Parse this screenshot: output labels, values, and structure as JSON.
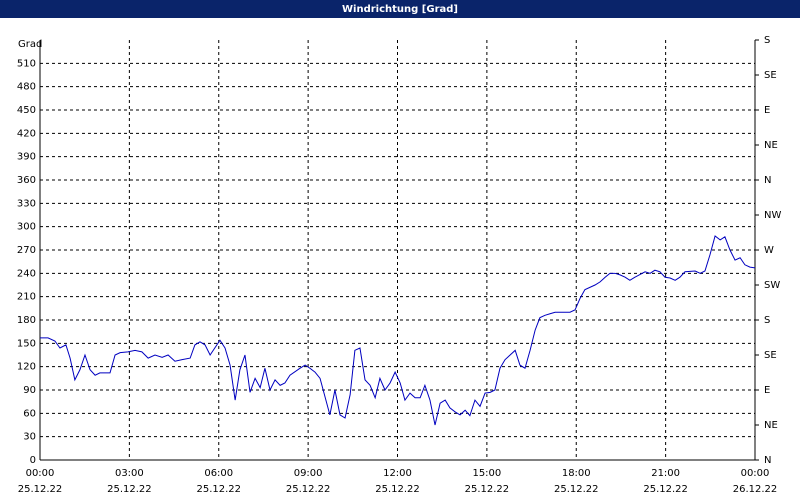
{
  "chart_data": {
    "type": "line",
    "title": "Windrichtung [Grad]",
    "ylabel": "Grad",
    "x": [
      0,
      0.27,
      0.5,
      0.67,
      0.87,
      1.01,
      1.17,
      1.34,
      1.51,
      1.68,
      1.85,
      2.01,
      2.35,
      2.52,
      2.69,
      2.95,
      3.19,
      3.42,
      3.63,
      3.86,
      4.1,
      4.3,
      4.53,
      4.77,
      5.04,
      5.2,
      5.37,
      5.54,
      5.71,
      6.04,
      6.21,
      6.38,
      6.55,
      6.71,
      6.88,
      7.05,
      7.22,
      7.39,
      7.55,
      7.72,
      7.89,
      8.06,
      8.22,
      8.39,
      8.73,
      8.9,
      9.06,
      9.23,
      9.4,
      9.73,
      9.9,
      10.07,
      10.24,
      10.41,
      10.57,
      10.74,
      10.91,
      11.08,
      11.25,
      11.41,
      11.58,
      11.75,
      11.92,
      12.09,
      12.25,
      12.42,
      12.59,
      12.76,
      12.92,
      13.09,
      13.26,
      13.43,
      13.6,
      13.76,
      13.93,
      14.1,
      14.27,
      14.43,
      14.6,
      14.77,
      14.94,
      15.11,
      15.27,
      15.44,
      15.61,
      15.78,
      15.95,
      16.11,
      16.28,
      16.45,
      16.62,
      16.78,
      16.95,
      17.12,
      17.29,
      17.79,
      17.96,
      18.13,
      18.29,
      18.63,
      18.8,
      18.97,
      19.13,
      19.3,
      19.47,
      19.64,
      19.8,
      19.97,
      20.31,
      20.48,
      20.64,
      20.81,
      20.98,
      21.15,
      21.32,
      21.48,
      21.65,
      21.99,
      22.16,
      22.32,
      22.49,
      22.66,
      22.83,
      22.99,
      23.16,
      23.33,
      23.5,
      23.66,
      23.83,
      24
    ],
    "series": [
      {
        "name": "Windrichtung",
        "color": "#0000c0",
        "values": [
          157,
          157,
          153,
          144,
          148,
          131,
          103,
          116,
          135,
          116,
          109,
          112,
          112,
          135,
          138,
          139,
          141,
          139,
          131,
          135,
          132,
          135,
          127,
          129,
          131,
          148,
          152,
          148,
          135,
          154,
          144,
          122,
          77,
          116,
          135,
          87,
          105,
          93,
          118,
          90,
          103,
          96,
          99,
          109,
          118,
          122,
          118,
          113,
          105,
          58,
          90,
          58,
          54,
          84,
          141,
          144,
          103,
          96,
          80,
          105,
          90,
          99,
          113,
          99,
          77,
          86,
          80,
          80,
          96,
          77,
          45,
          73,
          77,
          67,
          62,
          58,
          64,
          57,
          77,
          69,
          86,
          87,
          90,
          118,
          129,
          135,
          141,
          122,
          118,
          141,
          167,
          183,
          186,
          188,
          190,
          190,
          193,
          208,
          219,
          225,
          229,
          235,
          240,
          240,
          238,
          235,
          231,
          235,
          242,
          240,
          244,
          242,
          235,
          234,
          231,
          235,
          242,
          243,
          240,
          243,
          264,
          288,
          283,
          287,
          270,
          257,
          260,
          251,
          248,
          247
        ]
      }
    ],
    "xlim": [
      0,
      24
    ],
    "xticks": [
      {
        "value": 0,
        "label": "00:00"
      },
      {
        "value": 3,
        "label": "03:00"
      },
      {
        "value": 6,
        "label": "06:00"
      },
      {
        "value": 9,
        "label": "09:00"
      },
      {
        "value": 12,
        "label": "12:00"
      },
      {
        "value": 15,
        "label": "15:00"
      },
      {
        "value": 18,
        "label": "18:00"
      },
      {
        "value": 21,
        "label": "21:00"
      },
      {
        "value": 24,
        "label": "00:00"
      }
    ],
    "xtick_dates": [
      "25.12.22",
      "25.12.22",
      "25.12.22",
      "25.12.22",
      "25.12.22",
      "25.12.22",
      "25.12.22",
      "25.12.22",
      "26.12.22"
    ],
    "ylim": [
      0,
      540
    ],
    "yticks": [
      0,
      30,
      60,
      90,
      120,
      150,
      180,
      210,
      240,
      270,
      300,
      330,
      360,
      390,
      420,
      450,
      480,
      510
    ],
    "y2lim": [
      0,
      540
    ],
    "y2ticks": [
      {
        "value": 0,
        "label": "N"
      },
      {
        "value": 45,
        "label": "NE"
      },
      {
        "value": 90,
        "label": "E"
      },
      {
        "value": 135,
        "label": "SE"
      },
      {
        "value": 180,
        "label": "S"
      },
      {
        "value": 225,
        "label": "SW"
      },
      {
        "value": 270,
        "label": "W"
      },
      {
        "value": 315,
        "label": "NW"
      },
      {
        "value": 360,
        "label": "N"
      },
      {
        "value": 405,
        "label": "NE"
      },
      {
        "value": 450,
        "label": "E"
      },
      {
        "value": 495,
        "label": "SE"
      },
      {
        "value": 540,
        "label": "S"
      }
    ],
    "grid": true
  }
}
